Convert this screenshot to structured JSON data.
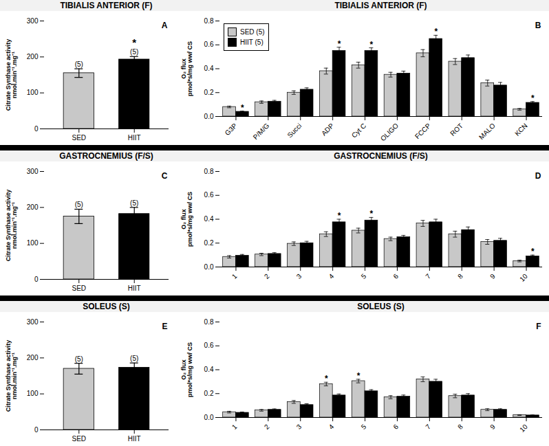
{
  "chart_data": [
    {
      "type": "bar",
      "title": "TIBIALIS ANTERIOR (F)",
      "panel_label": "A",
      "categories": [
        "SED",
        "HIIT"
      ],
      "values": [
        155,
        193
      ],
      "errors": [
        12,
        8
      ],
      "colors": [
        "#c8c8c8",
        "#000000"
      ],
      "n_labels": [
        "(5)",
        "(5)"
      ],
      "stars": [
        null,
        "*"
      ],
      "ylabel": "Citrate Synthase activity\nnmol.min⁻¹.mg⁻¹",
      "ylim": [
        0,
        300
      ],
      "yticks": [
        0,
        100,
        200,
        300
      ],
      "grid": false
    },
    {
      "type": "bar",
      "title": "TIBIALIS ANTERIOR (F)",
      "panel_label": "B",
      "categories": [
        "G3P",
        "P/M/G",
        "Succi",
        "ADP",
        "Cyt C",
        "OLIGO",
        "FCCP",
        "ROT",
        "MALO",
        "KCN"
      ],
      "series": [
        {
          "name": "SED (5)",
          "color": "#c8c8c8",
          "values": [
            0.08,
            0.12,
            0.2,
            0.38,
            0.43,
            0.35,
            0.53,
            0.46,
            0.28,
            0.06
          ],
          "errors": [
            0.007,
            0.01,
            0.015,
            0.025,
            0.025,
            0.02,
            0.03,
            0.025,
            0.025,
            0.007
          ],
          "stars": [
            null,
            null,
            null,
            null,
            null,
            null,
            null,
            null,
            null,
            null
          ]
        },
        {
          "name": "HIIT (5)",
          "color": "#000000",
          "values": [
            0.04,
            0.125,
            0.225,
            0.55,
            0.55,
            0.36,
            0.65,
            0.49,
            0.26,
            0.115
          ],
          "errors": [
            0.005,
            0.01,
            0.015,
            0.03,
            0.025,
            0.02,
            0.03,
            0.025,
            0.025,
            0.01
          ],
          "stars": [
            "*",
            null,
            null,
            "*",
            "*",
            null,
            "*",
            null,
            null,
            "*"
          ]
        }
      ],
      "ylabel": "O₂ flux\npmol*s/mg ww/ CS",
      "ylim": [
        0,
        0.8
      ],
      "yticks": [
        {
          "value": 0,
          "label": "0.0"
        },
        0.2,
        0.4,
        0.6,
        0.8
      ],
      "legend": "upper left",
      "grid": false
    },
    {
      "type": "bar",
      "title": "GASTROCNEMIUS (F/S)",
      "panel_label": "C",
      "categories": [
        "SED",
        "HIIT"
      ],
      "values": [
        175,
        182
      ],
      "errors": [
        20,
        18
      ],
      "colors": [
        "#c8c8c8",
        "#000000"
      ],
      "n_labels": [
        "(5)",
        "(5)"
      ],
      "stars": [
        null,
        null
      ],
      "ylabel": "Citrate Synthase activity\nnmol.min⁻¹.mg⁻¹",
      "ylim": [
        0,
        300
      ],
      "yticks": [
        0,
        100,
        200,
        300
      ],
      "grid": false
    },
    {
      "type": "bar",
      "title": "GASTROCNEMIUS (F/S)",
      "panel_label": "D",
      "categories": [
        "1",
        "2",
        "3",
        "4",
        "5",
        "6",
        "7",
        "8",
        "9",
        "10"
      ],
      "series": [
        {
          "color": "#c8c8c8",
          "values": [
            0.085,
            0.105,
            0.195,
            0.275,
            0.305,
            0.235,
            0.365,
            0.275,
            0.21,
            0.05
          ],
          "errors": [
            0.01,
            0.01,
            0.015,
            0.02,
            0.02,
            0.015,
            0.025,
            0.025,
            0.02,
            0.007
          ],
          "stars": [
            null,
            null,
            null,
            null,
            null,
            null,
            null,
            null,
            null,
            null
          ]
        },
        {
          "color": "#000000",
          "values": [
            0.095,
            0.11,
            0.2,
            0.375,
            0.39,
            0.25,
            0.375,
            0.31,
            0.22,
            0.09
          ],
          "errors": [
            0.01,
            0.01,
            0.015,
            0.025,
            0.025,
            0.015,
            0.025,
            0.025,
            0.02,
            0.01
          ],
          "stars": [
            null,
            null,
            null,
            "*",
            "*",
            null,
            null,
            null,
            null,
            "*"
          ]
        }
      ],
      "ylabel": "O₂ flux\npmol*s/mg ww/ CS",
      "ylim": [
        0,
        0.8
      ],
      "yticks": [
        {
          "value": 0,
          "label": "0.0"
        },
        0.2,
        0.4,
        0.6,
        0.8
      ],
      "grid": false
    },
    {
      "type": "bar",
      "title": "SOLEUS (S)",
      "panel_label": "E",
      "categories": [
        "SED",
        "HIIT"
      ],
      "values": [
        170,
        173
      ],
      "errors": [
        15,
        13
      ],
      "colors": [
        "#c8c8c8",
        "#000000"
      ],
      "n_labels": [
        "(5)",
        "(5)"
      ],
      "stars": [
        null,
        null
      ],
      "ylabel": "Citrate Synthase activity\nnmol.min⁻¹.mg⁻¹",
      "ylim": [
        0,
        300
      ],
      "yticks": [
        0,
        100,
        200,
        300
      ],
      "grid": false
    },
    {
      "type": "bar",
      "title": "SOLEUS (S)",
      "panel_label": "F",
      "categories": [
        "1",
        "2",
        "3",
        "4",
        "5",
        "6",
        "7",
        "8",
        "9",
        "10"
      ],
      "series": [
        {
          "color": "#c8c8c8",
          "values": [
            0.045,
            0.06,
            0.13,
            0.28,
            0.305,
            0.17,
            0.32,
            0.18,
            0.065,
            0.02
          ],
          "errors": [
            0.007,
            0.007,
            0.012,
            0.015,
            0.015,
            0.013,
            0.02,
            0.015,
            0.008,
            0.003
          ],
          "stars": [
            null,
            null,
            null,
            "*",
            "*",
            null,
            null,
            null,
            null,
            null
          ]
        },
        {
          "color": "#000000",
          "values": [
            0.04,
            0.065,
            0.105,
            0.185,
            0.22,
            0.175,
            0.3,
            0.185,
            0.065,
            0.018
          ],
          "errors": [
            0.006,
            0.007,
            0.01,
            0.012,
            0.013,
            0.013,
            0.02,
            0.015,
            0.008,
            0.003
          ],
          "stars": [
            null,
            null,
            null,
            null,
            null,
            null,
            null,
            null,
            null,
            null
          ]
        }
      ],
      "ylabel": "O₂ flux\npmol*s/mg ww/ CS",
      "ylim": [
        0,
        0.8
      ],
      "yticks": [
        {
          "value": 0,
          "label": "0.0"
        },
        0.2,
        0.4,
        0.6,
        0.8
      ],
      "grid": false
    }
  ]
}
